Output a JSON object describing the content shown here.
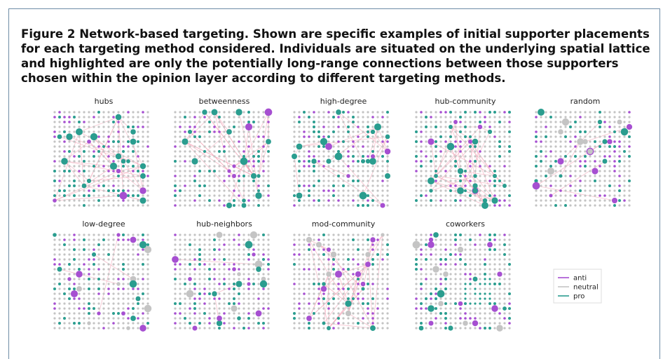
{
  "caption": {
    "label": "Figure 2",
    "title": "Network-based targeting.",
    "text": "Shown are specific examples of initial supporter placements for each targeting method considered. Individuals are situated on the underlying spatial lattice and highlighted are only the potentially long-range connections between those supporters chosen within the opinion layer according to different targeting methods."
  },
  "panels": [
    "hubs",
    "betweenness",
    "high-degree",
    "hub-community",
    "random",
    "low-degree",
    "hub-neighbors",
    "mod-community",
    "coworkers"
  ],
  "legend": [
    {
      "label": "anti",
      "color": "#a64fd1"
    },
    {
      "label": "neutral",
      "color": "#c4c4c4"
    },
    {
      "label": "pro",
      "color": "#2a9d8f"
    }
  ]
}
